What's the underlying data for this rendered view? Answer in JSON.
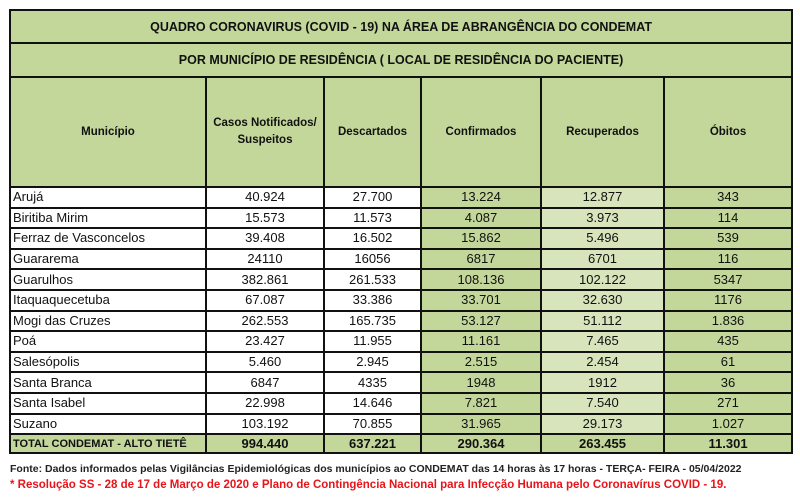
{
  "title": "QUADRO CORONAVIRUS (COVID - 19) NA ÁREA DE ABRANGÊNCIA DO CONDEMAT",
  "subtitle": "POR MUNICÍPIO DE RESIDÊNCIA ( LOCAL DE RESIDÊNCIA DO PACIENTE)",
  "headers": [
    "Município",
    "Casos Notificados/ Suspeitos",
    "Descartados",
    "Confirmados",
    "Recuperados",
    "Óbitos"
  ],
  "rows": [
    [
      "Arujá",
      "40.924",
      "27.700",
      "13.224",
      "12.877",
      "343"
    ],
    [
      "Biritiba Mirim",
      "15.573",
      "11.573",
      "4.087",
      "3.973",
      "114"
    ],
    [
      "Ferraz de Vasconcelos",
      "39.408",
      "16.502",
      "15.862",
      "5.496",
      "539"
    ],
    [
      "Guararema",
      "24110",
      "16056",
      "6817",
      "6701",
      "116"
    ],
    [
      "Guarulhos",
      "382.861",
      "261.533",
      "108.136",
      "102.122",
      "5347"
    ],
    [
      "Itaquaquecetuba",
      "67.087",
      "33.386",
      "33.701",
      "32.630",
      "1176"
    ],
    [
      "Mogi das Cruzes",
      "262.553",
      "165.735",
      "53.127",
      "51.112",
      "1.836"
    ],
    [
      "Poá",
      "23.427",
      "11.955",
      "11.161",
      "7.465",
      "435"
    ],
    [
      "Salesópolis",
      "5.460",
      "2.945",
      "2.515",
      "2.454",
      "61"
    ],
    [
      "Santa Branca",
      "6847",
      "4335",
      "1948",
      "1912",
      "36"
    ],
    [
      "Santa Isabel",
      "22.998",
      "14.646",
      "7.821",
      "7.540",
      "271"
    ],
    [
      "Suzano",
      "103.192",
      "70.855",
      "31.965",
      "29.173",
      "1.027"
    ]
  ],
  "total": [
    "TOTAL CONDEMAT - ALTO TIETÊ",
    "994.440",
    "637.221",
    "290.364",
    "263.455",
    "11.301"
  ],
  "source": "Fonte: Dados informados pelas Vigilâncias Epidemiológicas dos municípios ao CONDEMAT das 14 horas às 17 horas - TERÇA- FEIRA - 05/04/2022",
  "note": "* Resolução SS - 28 de 17 de Março de 2020 e Plano de Contingência Nacional para Infecção Humana pelo Coronavírus COVID - 19.",
  "colors": {
    "header_green": "#c4d79b",
    "light_green": "#d8e4bc",
    "note_red": "#e8141a"
  }
}
